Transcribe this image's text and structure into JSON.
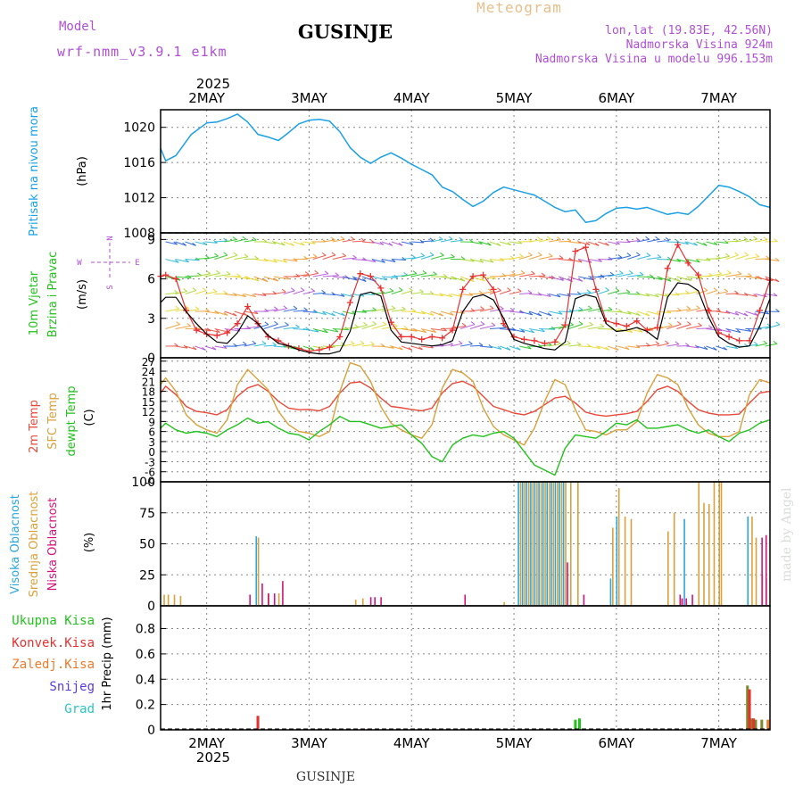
{
  "header": {
    "model_label": "Model",
    "model_name": "wrf-nmm_v3.9.1 e1km",
    "title": "GUSINJE",
    "meteogram": "Meteogram",
    "lonlat": "lon,lat (19.83E, 42.56N)",
    "altitude": "Nadmorska Visina 924m",
    "model_altitude": "Nadmorska Visina u modelu 996.153m",
    "credit": "made by Angel",
    "footer_station": "GUSINJE",
    "year": "2025"
  },
  "time_axis": {
    "start_day_index": 1.55,
    "end_day_index": 7.5,
    "day_labels": [
      "2MAY",
      "3MAY",
      "4MAY",
      "5MAY",
      "6MAY",
      "7MAY"
    ],
    "day_positions": [
      2,
      3,
      4,
      5,
      6,
      7
    ]
  },
  "colors": {
    "pressure": "#1aa0e6",
    "temp2m": "#e84a3a",
    "sfc_temp": "#d9a13b",
    "dewpoint": "#22c21c",
    "wind_speed": "#000000",
    "gust": "#e83030",
    "high_cloud": "#2aa7e0",
    "mid_cloud": "#d9a13b",
    "low_cloud": "#d6127a",
    "precip_total": "#22c21c",
    "precip_conv": "#e83030",
    "precip_frz": "#f07a2a",
    "precip_snow": "#5a3ae0",
    "precip_hail": "#2ac4c4"
  },
  "chart_data": [
    {
      "type": "line",
      "panel": "pressure",
      "ylabel": [
        "Pritisak na nivou mora",
        "(hPa)"
      ],
      "ylim": [
        1008,
        1022
      ],
      "yticks": [
        1008,
        1012,
        1016,
        1020
      ],
      "grid": true,
      "series": [
        {
          "x": [
            1.55,
            1.6,
            1.7,
            1.85,
            2.0,
            2.1,
            2.2,
            2.3,
            2.4,
            2.5,
            2.6,
            2.7,
            2.8,
            2.9,
            3.0,
            3.1,
            3.2,
            3.3,
            3.4,
            3.5,
            3.6,
            3.7,
            3.8,
            3.9,
            4.0,
            4.1,
            4.2,
            4.3,
            4.4,
            4.5,
            4.6,
            4.7,
            4.8,
            4.9,
            5.0,
            5.1,
            5.2,
            5.3,
            5.4,
            5.5,
            5.6,
            5.7,
            5.8,
            5.9,
            6.0,
            6.1,
            6.2,
            6.3,
            6.4,
            6.5,
            6.6,
            6.7,
            6.8,
            6.9,
            7.0,
            7.1,
            7.2,
            7.3,
            7.4,
            7.5
          ],
          "values": [
            1017.6,
            1016.2,
            1016.8,
            1019.2,
            1020.5,
            1020.6,
            1021.0,
            1021.5,
            1020.6,
            1019.2,
            1018.9,
            1018.5,
            1019.4,
            1020.4,
            1020.8,
            1020.9,
            1020.7,
            1019.5,
            1017.7,
            1016.6,
            1015.9,
            1016.6,
            1017.1,
            1016.5,
            1015.8,
            1015.2,
            1014.6,
            1013.2,
            1012.7,
            1011.8,
            1011.0,
            1011.6,
            1012.6,
            1013.2,
            1012.9,
            1012.6,
            1012.3,
            1011.6,
            1010.9,
            1010.4,
            1010.6,
            1009.2,
            1009.4,
            1010.2,
            1010.8,
            1010.9,
            1010.7,
            1010.9,
            1010.5,
            1010.1,
            1010.3,
            1010.1,
            1011.0,
            1012.2,
            1013.4,
            1013.2,
            1012.7,
            1012.1,
            1011.2,
            1010.9
          ]
        }
      ]
    },
    {
      "type": "line",
      "panel": "wind",
      "ylabel": [
        "10m Vjetar",
        "Brzina i Pravac",
        "(m/s)"
      ],
      "compass": [
        "N",
        "W",
        "E",
        "S"
      ],
      "ylim": [
        0,
        9.5
      ],
      "yticks": [
        0,
        3,
        6,
        9
      ],
      "grid": true,
      "series": [
        {
          "name": "speed",
          "x": [
            1.55,
            1.6,
            1.7,
            1.8,
            1.9,
            2.0,
            2.1,
            2.2,
            2.3,
            2.4,
            2.5,
            2.6,
            2.7,
            2.8,
            2.9,
            3.0,
            3.1,
            3.2,
            3.3,
            3.4,
            3.5,
            3.6,
            3.7,
            3.8,
            3.9,
            4.0,
            4.1,
            4.2,
            4.3,
            4.4,
            4.5,
            4.6,
            4.7,
            4.8,
            4.9,
            5.0,
            5.1,
            5.2,
            5.3,
            5.4,
            5.5,
            5.6,
            5.7,
            5.8,
            5.9,
            6.0,
            6.1,
            6.2,
            6.3,
            6.4,
            6.5,
            6.6,
            6.7,
            6.8,
            6.9,
            7.0,
            7.1,
            7.2,
            7.3,
            7.4,
            7.5
          ],
          "values": [
            4.2,
            4.6,
            4.6,
            3.5,
            2.6,
            1.8,
            1.2,
            1.1,
            1.9,
            3.2,
            2.6,
            1.7,
            1.1,
            0.9,
            0.6,
            0.4,
            0.3,
            0.3,
            0.5,
            2.0,
            4.8,
            5.0,
            4.7,
            2.1,
            1.2,
            1.1,
            1.0,
            0.9,
            1.0,
            1.3,
            3.5,
            4.6,
            4.8,
            4.4,
            3.0,
            1.4,
            1.1,
            0.9,
            0.7,
            0.6,
            1.2,
            4.5,
            4.8,
            4.6,
            2.6,
            2.0,
            2.1,
            2.3,
            2.0,
            1.4,
            4.6,
            5.7,
            5.6,
            5.1,
            3.1,
            1.6,
            1.1,
            0.8,
            0.9,
            2.4,
            4.5
          ]
        },
        {
          "name": "gust",
          "x": [
            1.55,
            1.6,
            1.7,
            1.8,
            1.9,
            2.0,
            2.1,
            2.2,
            2.3,
            2.4,
            2.5,
            2.6,
            2.7,
            2.8,
            2.9,
            3.0,
            3.1,
            3.2,
            3.3,
            3.4,
            3.5,
            3.6,
            3.7,
            3.8,
            3.9,
            4.0,
            4.1,
            4.2,
            4.3,
            4.4,
            4.5,
            4.6,
            4.7,
            4.8,
            4.9,
            5.0,
            5.1,
            5.2,
            5.3,
            5.4,
            5.5,
            5.6,
            5.7,
            5.8,
            5.9,
            6.0,
            6.1,
            6.2,
            6.3,
            6.4,
            6.5,
            6.6,
            6.7,
            6.8,
            6.9,
            7.0,
            7.1,
            7.2,
            7.3,
            7.4,
            7.5
          ],
          "values": [
            6.2,
            6.3,
            6.0,
            3.6,
            2.1,
            1.8,
            1.7,
            1.9,
            2.6,
            3.9,
            2.6,
            1.6,
            1.3,
            0.9,
            0.7,
            0.5,
            0.6,
            0.8,
            1.6,
            4.2,
            6.4,
            6.2,
            5.3,
            2.7,
            1.6,
            1.6,
            1.4,
            1.6,
            1.5,
            2.1,
            5.2,
            6.2,
            6.3,
            5.2,
            2.6,
            1.6,
            1.4,
            1.3,
            1.1,
            1.2,
            2.5,
            8.1,
            8.4,
            5.2,
            2.8,
            2.6,
            2.4,
            2.8,
            2.1,
            2.3,
            6.8,
            8.6,
            7.2,
            6.3,
            3.6,
            1.9,
            1.6,
            1.3,
            1.3,
            3.6,
            5.9
          ]
        }
      ]
    },
    {
      "type": "line",
      "panel": "temperature",
      "ylabel": [
        "2m Temp",
        "SFC Temp",
        "dewpt Temp",
        "(C)"
      ],
      "ylim": [
        -9,
        28
      ],
      "yticks": [
        -9,
        -6,
        -3,
        0,
        3,
        6,
        9,
        12,
        15,
        18,
        21,
        24,
        27
      ],
      "grid": true,
      "x": [
        1.55,
        1.6,
        1.7,
        1.8,
        1.9,
        2.0,
        2.1,
        2.2,
        2.3,
        2.4,
        2.5,
        2.6,
        2.7,
        2.8,
        2.9,
        3.0,
        3.1,
        3.2,
        3.3,
        3.4,
        3.5,
        3.6,
        3.7,
        3.8,
        3.9,
        4.0,
        4.1,
        4.2,
        4.3,
        4.4,
        4.5,
        4.6,
        4.7,
        4.8,
        4.9,
        5.0,
        5.1,
        5.2,
        5.3,
        5.4,
        5.5,
        5.6,
        5.7,
        5.8,
        5.9,
        6.0,
        6.1,
        6.2,
        6.3,
        6.4,
        6.5,
        6.6,
        6.7,
        6.8,
        6.9,
        7.0,
        7.1,
        7.2,
        7.3,
        7.4,
        7.5
      ],
      "series": [
        {
          "name": "2m Temp",
          "values": [
            17.5,
            19.5,
            17.0,
            13.5,
            12.0,
            11.6,
            11.0,
            12.5,
            16.5,
            19.0,
            20.0,
            18.0,
            15.0,
            13.0,
            12.5,
            12.6,
            12.2,
            13.5,
            17.5,
            20.5,
            20.8,
            19.0,
            16.0,
            13.5,
            13.1,
            12.6,
            12.2,
            13.0,
            17.5,
            20.3,
            21.0,
            19.5,
            16.5,
            13.5,
            12.5,
            11.5,
            11.0,
            12.0,
            14.0,
            16.0,
            16.5,
            14.5,
            11.8,
            11.0,
            10.6,
            11.0,
            11.3,
            12.0,
            15.0,
            18.5,
            19.5,
            18.0,
            15.0,
            12.5,
            11.5,
            11.0,
            11.0,
            11.2,
            14.5,
            17.5,
            18.0
          ]
        },
        {
          "name": "SFC Temp",
          "values": [
            20.0,
            22.0,
            18.0,
            11.0,
            8.0,
            6.5,
            5.5,
            9.5,
            20.0,
            24.5,
            21.5,
            18.5,
            12.0,
            8.0,
            6.0,
            5.5,
            4.5,
            6.0,
            18.0,
            26.5,
            25.5,
            21.0,
            13.5,
            8.5,
            6.5,
            5.0,
            4.0,
            8.0,
            19.0,
            24.5,
            23.5,
            21.0,
            13.0,
            7.5,
            5.0,
            3.5,
            2.0,
            7.0,
            15.0,
            21.5,
            20.0,
            12.5,
            6.5,
            6.0,
            5.0,
            6.5,
            6.5,
            9.0,
            17.5,
            23.0,
            22.0,
            20.0,
            13.0,
            8.0,
            5.5,
            4.5,
            4.5,
            6.0,
            17.0,
            21.5,
            20.5
          ]
        },
        {
          "name": "dewpt Temp",
          "values": [
            7.0,
            8.5,
            6.5,
            5.5,
            6.0,
            5.5,
            4.5,
            6.5,
            8.0,
            10.0,
            8.5,
            9.0,
            7.0,
            5.5,
            5.0,
            3.5,
            6.0,
            8.0,
            10.5,
            9.0,
            9.0,
            8.0,
            7.0,
            7.5,
            8.0,
            5.0,
            2.5,
            -1.5,
            -3.0,
            2.0,
            4.0,
            5.0,
            4.5,
            5.5,
            6.0,
            4.0,
            0.0,
            -4.0,
            -5.5,
            -7.0,
            1.0,
            5.0,
            4.5,
            4.0,
            6.0,
            8.5,
            8.0,
            9.5,
            7.0,
            7.0,
            7.5,
            8.0,
            6.5,
            5.5,
            6.5,
            4.5,
            3.0,
            5.5,
            6.5,
            8.5,
            9.5
          ]
        }
      ]
    },
    {
      "type": "bar",
      "panel": "clouds",
      "ylabel": [
        "Visoka Oblacnost",
        "Srednja Oblacnost",
        "Niska Oblacnost",
        "(%)"
      ],
      "ylim": [
        0,
        100
      ],
      "yticks": [
        0,
        25,
        50,
        75,
        100
      ],
      "grid": true,
      "series": [
        {
          "name": "Visoka Oblacnost",
          "x": [
            2.5,
            5.06,
            5.1,
            5.14,
            5.18,
            5.22,
            5.26,
            5.3,
            5.34,
            5.38,
            5.42,
            5.46,
            5.5,
            5.96,
            6.02,
            6.68,
            7.3,
            7.48
          ],
          "values": [
            56,
            100,
            100,
            100,
            100,
            100,
            100,
            100,
            100,
            100,
            100,
            100,
            100,
            22,
            72,
            70,
            72,
            22
          ]
        },
        {
          "name": "Srednja Oblacnost",
          "x": [
            1.58,
            1.62,
            1.68,
            1.74,
            2.5,
            2.6,
            2.7,
            3.45,
            3.52,
            4.9,
            5.06,
            5.1,
            5.14,
            5.18,
            5.22,
            5.26,
            5.3,
            5.34,
            5.38,
            5.42,
            5.46,
            5.5,
            5.55,
            5.62,
            5.96,
            6.02,
            6.08,
            6.14,
            6.5,
            6.56,
            6.62,
            6.68,
            6.8,
            6.85,
            6.9,
            6.95,
            7.0,
            7.02,
            7.32,
            7.36,
            7.42
          ],
          "values": [
            9,
            9,
            9,
            8,
            55,
            10,
            10,
            5,
            6,
            3,
            100,
            100,
            100,
            100,
            100,
            100,
            100,
            100,
            100,
            100,
            100,
            100,
            100,
            100,
            63,
            95,
            72,
            70,
            60,
            75,
            5,
            3,
            100,
            83,
            82,
            100,
            100,
            100,
            72,
            55,
            25
          ]
        },
        {
          "name": "Niska Oblacnost",
          "x": [
            2.4,
            2.52,
            2.58,
            2.64,
            2.72,
            3.58,
            3.62,
            3.68,
            4.5,
            5.5,
            5.66,
            6.6,
            6.62,
            6.66,
            6.72,
            7.4,
            7.44
          ],
          "values": [
            9,
            18,
            10,
            10,
            20,
            7,
            7,
            7,
            9,
            35,
            9,
            9,
            6,
            6,
            9,
            55,
            57
          ]
        }
      ]
    },
    {
      "type": "bar",
      "panel": "precipitation",
      "ylabel": [
        "1hr Precip (mm)"
      ],
      "ylim": [
        0,
        0.98
      ],
      "yticks": [
        0,
        0.2,
        0.4,
        0.6,
        0.8
      ],
      "grid": true,
      "legend": [
        "Ukupna Kisa",
        "Konvek.Kisa",
        "Zaledj.Kisa",
        "Snijeg",
        "Grad"
      ],
      "series": [
        {
          "name": "Ukupna Kisa",
          "x": [
            2.5,
            3.58,
            5.6,
            5.64,
            6.52,
            7.28,
            7.32,
            7.36,
            7.42
          ],
          "values": [
            0.11,
            0.01,
            0.08,
            0.09,
            0.01,
            0.35,
            0.09,
            0.08,
            0.08
          ]
        },
        {
          "name": "Konvek.Kisa",
          "x": [
            2.5,
            3.58,
            6.52,
            7.3,
            7.34
          ],
          "values": [
            0.11,
            0.01,
            0.01,
            0.32,
            0.09
          ]
        },
        {
          "name": "Zaledj.Kisa",
          "x": [
            7.48
          ],
          "values": [
            0.08
          ]
        }
      ]
    }
  ]
}
